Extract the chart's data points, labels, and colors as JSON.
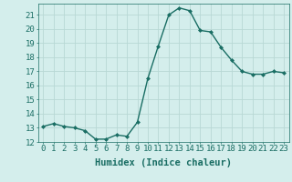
{
  "x": [
    0,
    1,
    2,
    3,
    4,
    5,
    6,
    7,
    8,
    9,
    10,
    11,
    12,
    13,
    14,
    15,
    16,
    17,
    18,
    19,
    20,
    21,
    22,
    23
  ],
  "y": [
    13.1,
    13.3,
    13.1,
    13.0,
    12.8,
    12.2,
    12.2,
    12.5,
    12.4,
    13.4,
    16.5,
    18.8,
    21.0,
    21.5,
    21.3,
    19.9,
    19.8,
    18.7,
    17.8,
    17.0,
    16.8,
    16.8,
    17.0,
    16.9
  ],
  "line_color": "#1a6e64",
  "marker": "D",
  "markersize": 2.0,
  "linewidth": 1.0,
  "bg_color": "#d4eeec",
  "grid_color": "#b8d8d5",
  "xlabel": "Humidex (Indice chaleur)",
  "xlabel_fontsize": 7.5,
  "tick_fontsize": 6.5,
  "xlim": [
    -0.5,
    23.5
  ],
  "ylim": [
    12,
    21.8
  ],
  "yticks": [
    12,
    13,
    14,
    15,
    16,
    17,
    18,
    19,
    20,
    21
  ],
  "xticks": [
    0,
    1,
    2,
    3,
    4,
    5,
    6,
    7,
    8,
    9,
    10,
    11,
    12,
    13,
    14,
    15,
    16,
    17,
    18,
    19,
    20,
    21,
    22,
    23
  ]
}
